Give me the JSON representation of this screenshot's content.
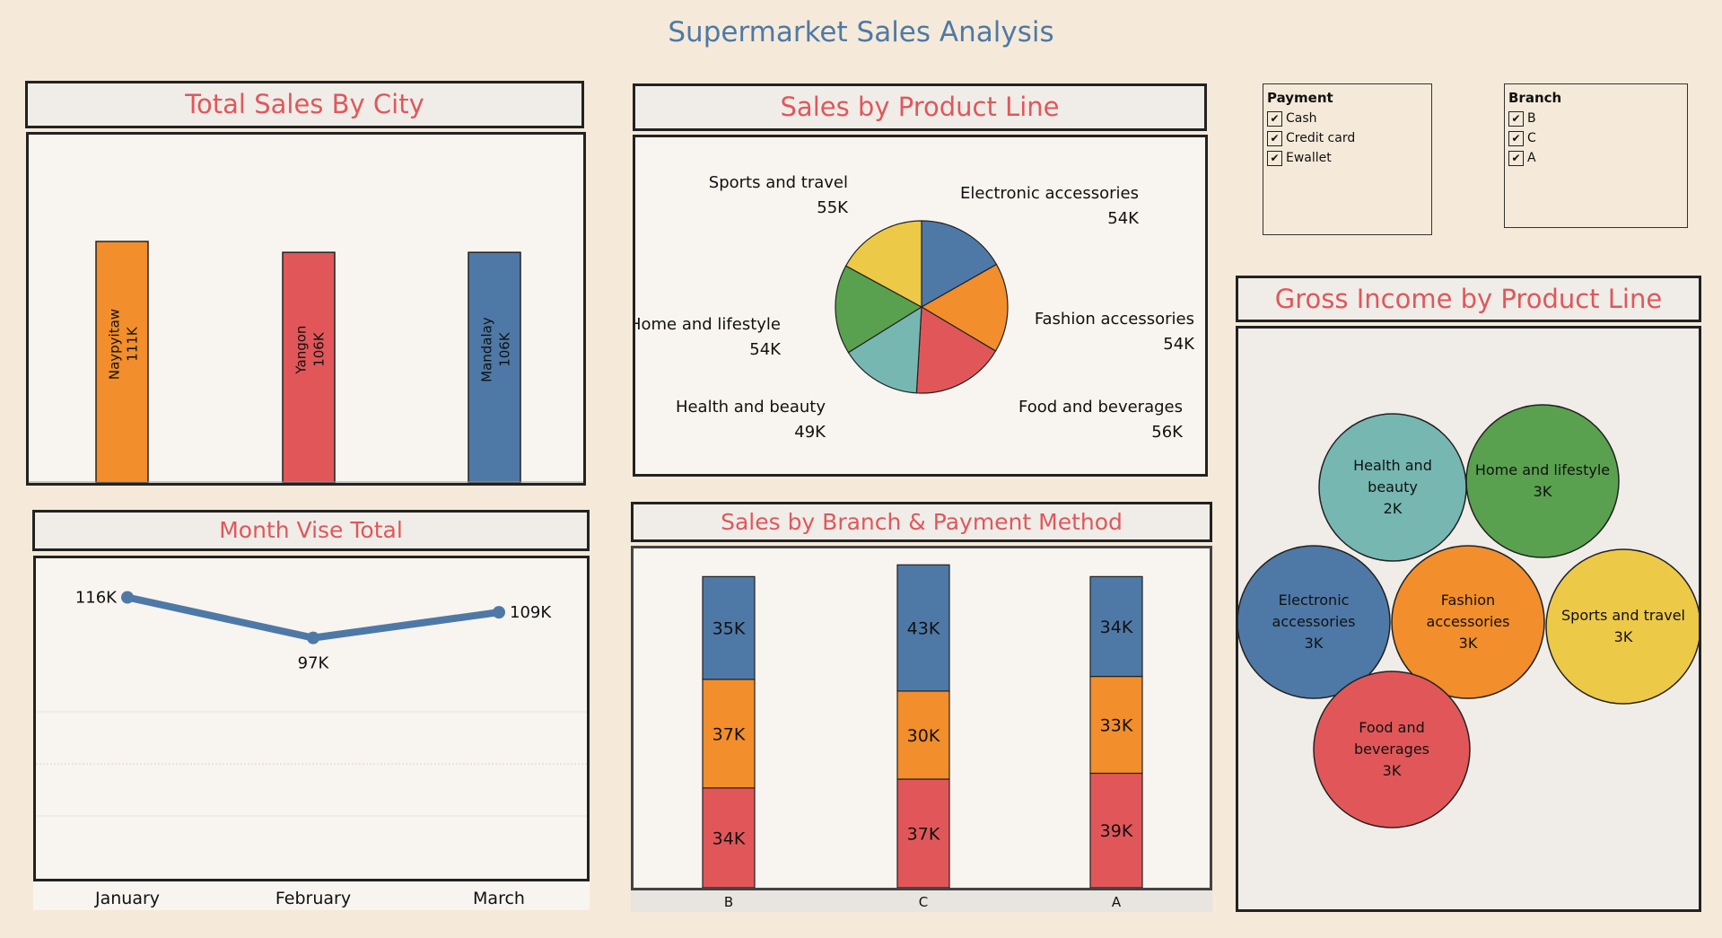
{
  "dashboard": {
    "title": "Supermarket Sales Analysis"
  },
  "filters": {
    "payment": {
      "title": "Payment",
      "items": [
        "Cash",
        "Credit card",
        "Ewallet"
      ]
    },
    "branch": {
      "title": "Branch",
      "items": [
        "B",
        "C",
        "A"
      ]
    }
  },
  "colors": {
    "blue": "#4e79a7",
    "orange": "#f28e2b",
    "red": "#e15759",
    "teal": "#76b7b2",
    "green": "#59a14f",
    "yellow": "#edc948"
  },
  "chart_data": [
    {
      "id": "city",
      "type": "bar",
      "title": "Total Sales By City",
      "categories": [
        "Naypyitaw",
        "Yangon",
        "Mandalay"
      ],
      "values": [
        111,
        106,
        106
      ],
      "labels": [
        "111K",
        "106K",
        "106K"
      ],
      "colors": [
        "#f28e2b",
        "#e15759",
        "#4e79a7"
      ],
      "ylim": [
        0,
        130
      ]
    },
    {
      "id": "product",
      "type": "pie",
      "title": "Sales by Product Line",
      "slices": [
        {
          "name": "Electronic accessories",
          "value": 54,
          "label": "54K",
          "color": "#4e79a7"
        },
        {
          "name": "Fashion accessories",
          "value": 54,
          "label": "54K",
          "color": "#f28e2b"
        },
        {
          "name": "Food and beverages",
          "value": 56,
          "label": "56K",
          "color": "#e15759"
        },
        {
          "name": "Health and beauty",
          "value": 49,
          "label": "49K",
          "color": "#76b7b2"
        },
        {
          "name": "Home and lifestyle",
          "value": 54,
          "label": "54K",
          "color": "#59a14f"
        },
        {
          "name": "Sports and travel",
          "value": 55,
          "label": "55K",
          "color": "#edc948"
        }
      ]
    },
    {
      "id": "month",
      "type": "line",
      "title": "Month Vise Total",
      "categories": [
        "January",
        "February",
        "March"
      ],
      "values": [
        116,
        97,
        109
      ],
      "labels": [
        "116K",
        "97K",
        "109K"
      ],
      "color": "#4e79a7"
    },
    {
      "id": "branch",
      "type": "bar",
      "stacked": true,
      "title": "Sales by Branch & Payment Method",
      "categories": [
        "B",
        "C",
        "A"
      ],
      "series": [
        {
          "values": [
            34,
            37,
            39
          ],
          "labels": [
            "34K",
            "37K",
            "39K"
          ],
          "color": "#e15759"
        },
        {
          "values": [
            37,
            30,
            33
          ],
          "labels": [
            "37K",
            "30K",
            "33K"
          ],
          "color": "#f28e2b"
        },
        {
          "values": [
            35,
            43,
            34
          ],
          "labels": [
            "35K",
            "43K",
            "34K"
          ],
          "color": "#4e79a7"
        }
      ],
      "ylim": [
        0,
        110
      ]
    },
    {
      "id": "gross",
      "type": "bubble",
      "title": "Gross Income by Product Line",
      "bubbles": [
        {
          "name": "Health and beauty",
          "lines": [
            "Health and",
            "beauty"
          ],
          "value": 2,
          "label": "2K",
          "color": "#76b7b2"
        },
        {
          "name": "Home and lifestyle",
          "lines": [
            "Home and lifestyle"
          ],
          "value": 3,
          "label": "3K",
          "color": "#59a14f"
        },
        {
          "name": "Electronic accessories",
          "lines": [
            "Electronic",
            "accessories"
          ],
          "value": 3,
          "label": "3K",
          "color": "#4e79a7"
        },
        {
          "name": "Fashion accessories",
          "lines": [
            "Fashion",
            "accessories"
          ],
          "value": 3,
          "label": "3K",
          "color": "#f28e2b"
        },
        {
          "name": "Sports and travel",
          "lines": [
            "Sports and travel"
          ],
          "value": 3,
          "label": "3K",
          "color": "#edc948"
        },
        {
          "name": "Food and beverages",
          "lines": [
            "Food and",
            "beverages"
          ],
          "value": 3,
          "label": "3K",
          "color": "#e15759"
        }
      ]
    }
  ]
}
